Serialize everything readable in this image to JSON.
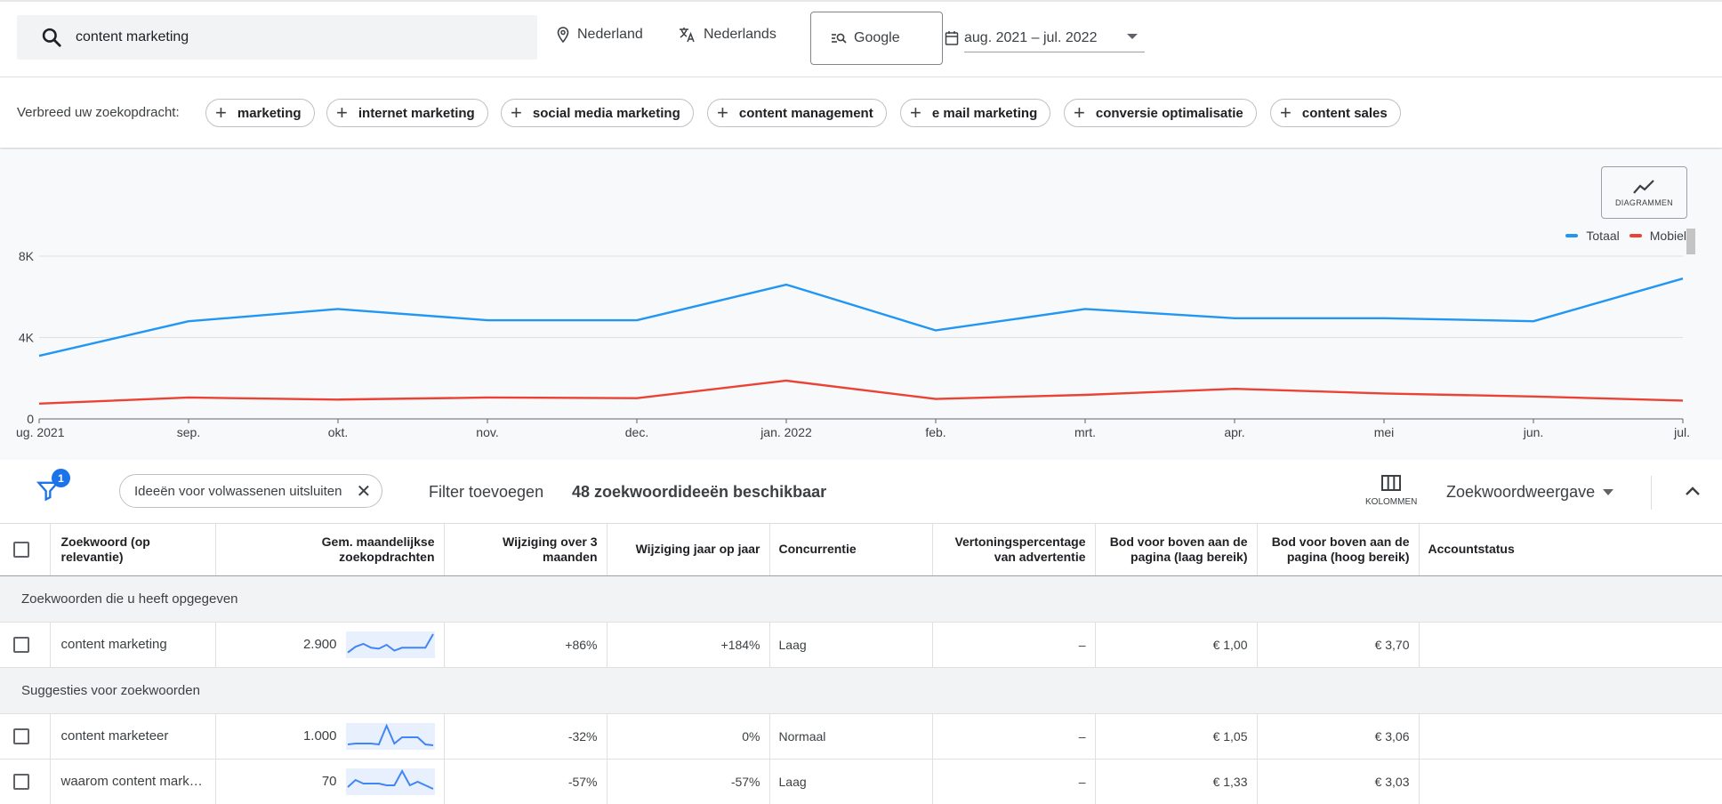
{
  "search": {
    "query": "content marketing"
  },
  "location": "Nederland",
  "language": "Nederlands",
  "network": "Google",
  "date_range": "aug. 2021 – jul. 2022",
  "broaden": {
    "label": "Verbreed uw zoekopdracht:",
    "chips": [
      "marketing",
      "internet marketing",
      "social media marketing",
      "content management",
      "e mail marketing",
      "conversie optimalisatie",
      "content sales"
    ]
  },
  "chart_button_label": "DIAGRAMMEN",
  "chart_data": {
    "type": "line",
    "x": [
      "ug. 2021",
      "sep.",
      "okt.",
      "nov.",
      "dec.",
      "jan. 2022",
      "feb.",
      "mrt.",
      "apr.",
      "mei",
      "jun.",
      "jul."
    ],
    "series": [
      {
        "name": "Totaal",
        "color": "#2196f3",
        "values": [
          3100,
          4800,
          5400,
          4850,
          4850,
          6600,
          4350,
          5400,
          4950,
          4950,
          4800,
          6900
        ]
      },
      {
        "name": "Mobiel",
        "color": "#ea4335",
        "values": [
          750,
          1050,
          950,
          1050,
          1020,
          1880,
          980,
          1180,
          1480,
          1250,
          1100,
          900
        ]
      }
    ],
    "yticks": [
      "0",
      "4K",
      "8K"
    ],
    "ylim": [
      0,
      8000
    ],
    "grid": true,
    "legend": "top-right"
  },
  "filter": {
    "badge": "1",
    "chip_label": "Ideeën voor volwassenen uitsluiten",
    "add_label": "Filter toevoegen",
    "count_label": "48 zoekwoordideeën beschikbaar",
    "columns_label": "KOLOMMEN",
    "view_label": "Zoekwoordweergave"
  },
  "table": {
    "headers": {
      "keyword": "Zoekwoord (op relevantie)",
      "volume": "Gem. maandelijkse zoekopdrachten",
      "change3m": "Wijziging over 3 maanden",
      "changeyoy": "Wijziging jaar op jaar",
      "competition": "Concurrentie",
      "impression": "Vertoningspercentage van advertentie",
      "bidlow": "Bod voor boven aan de pagina (laag bereik)",
      "bidhigh": "Bod voor boven aan de pagina (hoog bereik)",
      "status": "Accountstatus"
    },
    "group1": "Zoekwoorden die u heeft opgegeven",
    "group2": "Suggesties voor zoekwoorden",
    "rows": [
      {
        "keyword": "content marketing",
        "volume": "2.900",
        "change3m": "+86%",
        "changeyoy": "+184%",
        "competition": "Laag",
        "impression": "–",
        "bidlow": "€ 1,00",
        "bidhigh": "€ 3,70",
        "spark": [
          3,
          9,
          12,
          8,
          7,
          11,
          5,
          8,
          8,
          8,
          8,
          22
        ]
      },
      {
        "keyword": "content marketeer",
        "volume": "1.000",
        "change3m": "-32%",
        "changeyoy": "0%",
        "competition": "Normaal",
        "impression": "–",
        "bidlow": "€ 1,05",
        "bidhigh": "€ 3,06",
        "spark": [
          3,
          4,
          4,
          4,
          3,
          24,
          4,
          11,
          11,
          11,
          3,
          2
        ]
      },
      {
        "keyword": "waarom content mark…",
        "volume": "70",
        "change3m": "-57%",
        "changeyoy": "-57%",
        "competition": "Laag",
        "impression": "–",
        "bidlow": "€ 1,33",
        "bidhigh": "€ 3,03",
        "spark": [
          6,
          14,
          10,
          10,
          10,
          8,
          8,
          24,
          8,
          12,
          8,
          4
        ]
      }
    ]
  }
}
